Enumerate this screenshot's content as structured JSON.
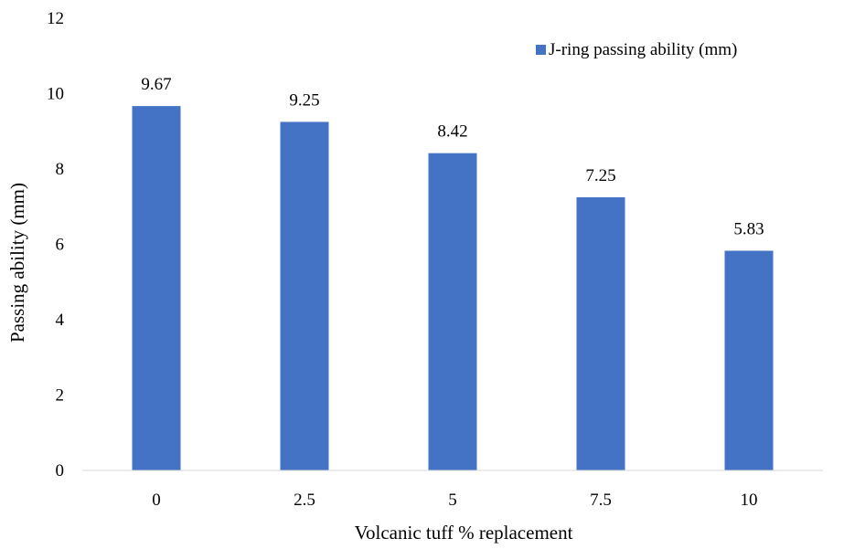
{
  "chart_data": {
    "type": "bar",
    "title": "",
    "xlabel": "Volcanic tuff % replacement",
    "ylabel": "Passing ability (mm)",
    "ylim": [
      0,
      12
    ],
    "yticks": [
      0,
      2,
      4,
      6,
      8,
      10,
      12
    ],
    "categories": [
      "0",
      "2.5",
      "5",
      "7.5",
      "10"
    ],
    "series": [
      {
        "name": "J-ring passing ability (mm)",
        "values": [
          9.67,
          9.25,
          8.42,
          7.25,
          5.83
        ],
        "labels": [
          "9.67",
          "9.25",
          "8.42",
          "7.25",
          "5.83"
        ]
      }
    ],
    "bar_color": "#4472C4",
    "grid": false,
    "legend": "top-right"
  }
}
